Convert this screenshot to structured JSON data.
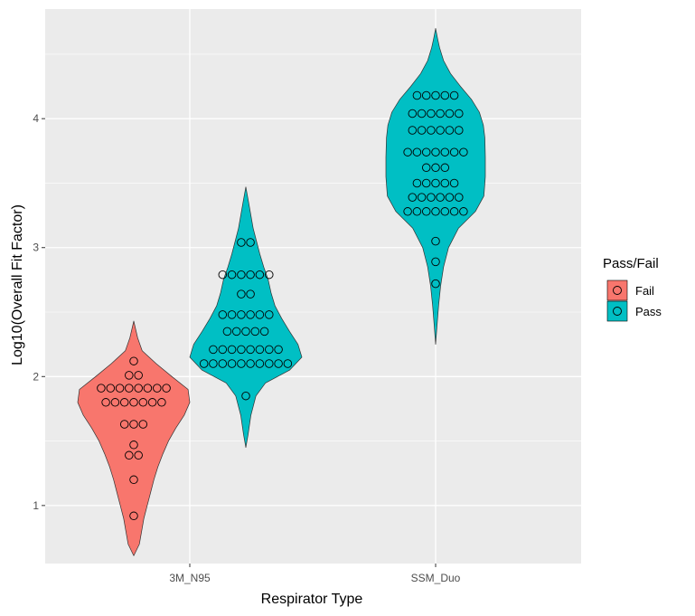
{
  "chart_data": {
    "type": "violin",
    "xlabel": "Respirator Type",
    "ylabel": "Log10(Overall Fit Factor)",
    "categories": [
      "3M_N95",
      "SSM_Duo"
    ],
    "ylim": [
      0.55,
      4.85
    ],
    "yticks": [
      1,
      2,
      3,
      4
    ],
    "grid": true,
    "legend": {
      "title": "Pass/Fail",
      "placement": "right",
      "entries": [
        {
          "label": "Fail",
          "color": "#F8766D"
        },
        {
          "label": "Pass",
          "color": "#00BFC4"
        }
      ]
    },
    "series": [
      {
        "category": "3M_N95",
        "group": "Fail",
        "color": "#F8766D",
        "range": [
          0.61,
          2.43
        ],
        "density": [
          [
            0.61,
            0.0
          ],
          [
            0.7,
            0.1
          ],
          [
            0.8,
            0.14
          ],
          [
            0.9,
            0.18
          ],
          [
            1.0,
            0.24
          ],
          [
            1.1,
            0.3
          ],
          [
            1.2,
            0.36
          ],
          [
            1.3,
            0.43
          ],
          [
            1.4,
            0.52
          ],
          [
            1.5,
            0.62
          ],
          [
            1.6,
            0.75
          ],
          [
            1.7,
            0.9
          ],
          [
            1.8,
            1.0
          ],
          [
            1.9,
            0.97
          ],
          [
            2.0,
            0.68
          ],
          [
            2.1,
            0.4
          ],
          [
            2.2,
            0.15
          ],
          [
            2.3,
            0.07
          ],
          [
            2.43,
            0.0
          ]
        ],
        "points": [
          {
            "y": 2.12,
            "n": 1
          },
          {
            "y": 2.01,
            "n": 2
          },
          {
            "y": 1.91,
            "n": 8
          },
          {
            "y": 1.8,
            "n": 7
          },
          {
            "y": 1.63,
            "n": 3
          },
          {
            "y": 1.47,
            "n": 1
          },
          {
            "y": 1.39,
            "n": 2
          },
          {
            "y": 1.2,
            "n": 1
          },
          {
            "y": 0.92,
            "n": 1
          }
        ]
      },
      {
        "category": "3M_N95",
        "group": "Pass",
        "color": "#00BFC4",
        "range": [
          1.45,
          3.47
        ],
        "density": [
          [
            1.45,
            0.0
          ],
          [
            1.55,
            0.04
          ],
          [
            1.7,
            0.09
          ],
          [
            1.85,
            0.18
          ],
          [
            1.95,
            0.35
          ],
          [
            2.05,
            0.78
          ],
          [
            2.15,
            1.0
          ],
          [
            2.25,
            0.93
          ],
          [
            2.35,
            0.78
          ],
          [
            2.45,
            0.64
          ],
          [
            2.55,
            0.52
          ],
          [
            2.65,
            0.45
          ],
          [
            2.75,
            0.4
          ],
          [
            2.85,
            0.32
          ],
          [
            2.95,
            0.25
          ],
          [
            3.05,
            0.19
          ],
          [
            3.15,
            0.13
          ],
          [
            3.25,
            0.09
          ],
          [
            3.35,
            0.05
          ],
          [
            3.47,
            0.0
          ]
        ],
        "points": [
          {
            "y": 3.04,
            "n": 2
          },
          {
            "y": 2.79,
            "n": 6
          },
          {
            "y": 2.64,
            "n": 2
          },
          {
            "y": 2.48,
            "n": 6
          },
          {
            "y": 2.35,
            "n": 5
          },
          {
            "y": 2.21,
            "n": 8
          },
          {
            "y": 2.1,
            "n": 10
          },
          {
            "y": 1.85,
            "n": 1
          }
        ]
      },
      {
        "category": "SSM_Duo",
        "group": "Pass",
        "color": "#00BFC4",
        "range": [
          2.25,
          4.7
        ],
        "density": [
          [
            2.25,
            0.0
          ],
          [
            2.4,
            0.03
          ],
          [
            2.55,
            0.06
          ],
          [
            2.7,
            0.1
          ],
          [
            2.85,
            0.16
          ],
          [
            3.0,
            0.26
          ],
          [
            3.15,
            0.46
          ],
          [
            3.28,
            0.8
          ],
          [
            3.4,
            0.97
          ],
          [
            3.55,
            1.0
          ],
          [
            3.7,
            1.0
          ],
          [
            3.85,
            0.99
          ],
          [
            3.95,
            0.96
          ],
          [
            4.05,
            0.88
          ],
          [
            4.15,
            0.72
          ],
          [
            4.25,
            0.5
          ],
          [
            4.35,
            0.3
          ],
          [
            4.45,
            0.16
          ],
          [
            4.55,
            0.08
          ],
          [
            4.62,
            0.04
          ],
          [
            4.7,
            0.0
          ]
        ],
        "points": [
          {
            "y": 4.18,
            "n": 5
          },
          {
            "y": 4.04,
            "n": 6
          },
          {
            "y": 3.91,
            "n": 6
          },
          {
            "y": 3.74,
            "n": 7
          },
          {
            "y": 3.62,
            "n": 3
          },
          {
            "y": 3.5,
            "n": 5
          },
          {
            "y": 3.39,
            "n": 6
          },
          {
            "y": 3.28,
            "n": 7
          },
          {
            "y": 3.05,
            "n": 1
          },
          {
            "y": 2.89,
            "n": 1
          },
          {
            "y": 2.72,
            "n": 1
          }
        ]
      }
    ]
  }
}
